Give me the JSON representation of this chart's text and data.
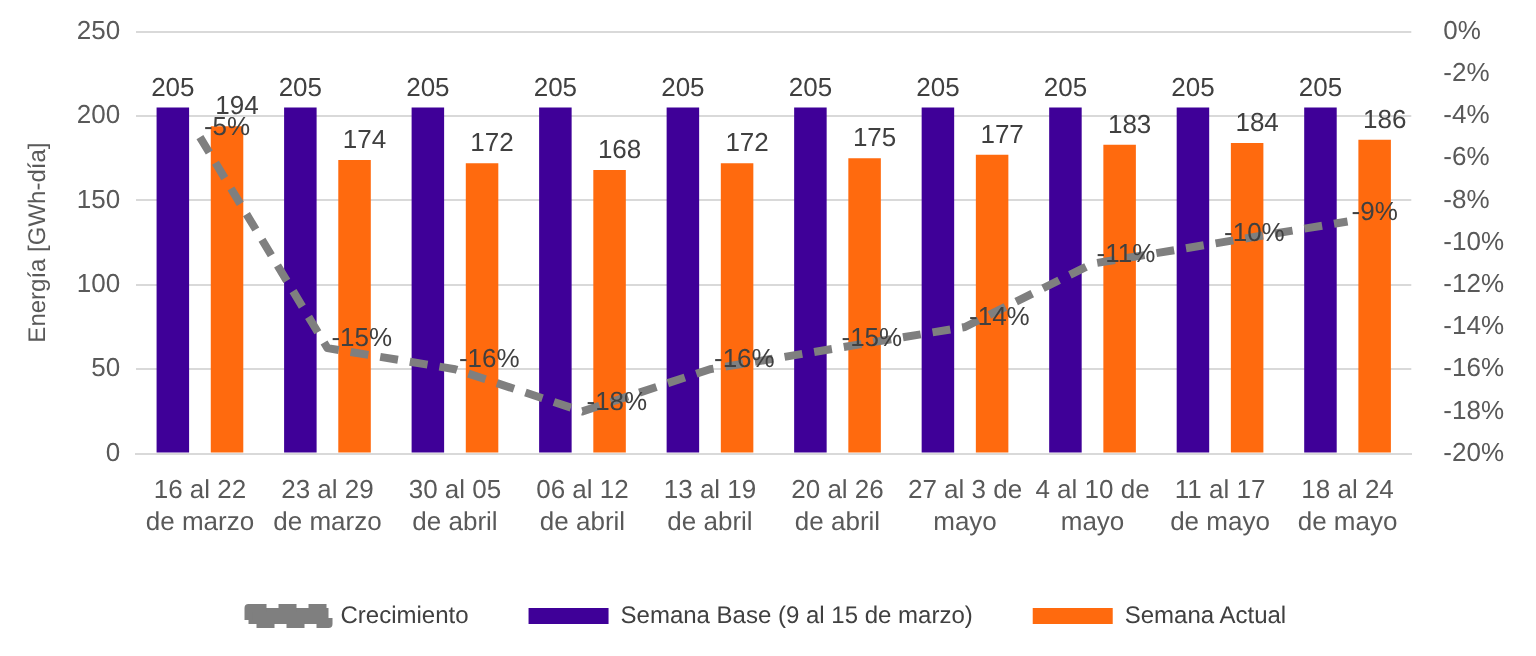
{
  "chart_data": {
    "type": "bar",
    "categories": [
      "16 al 22 de marzo",
      "23 al 29 de marzo",
      "30 al 05 de abril",
      "06 al 12 de abril",
      "13 al 19 de abril",
      "20 al 26 de abril",
      "27 al 3 de mayo",
      "4 al 10 de mayo",
      "11 al 17 de mayo",
      "18 al 24 de mayo"
    ],
    "ylabel": "Energía [GWh-día]",
    "ylim": [
      0,
      250
    ],
    "yticks": [
      0,
      50,
      100,
      150,
      200,
      250
    ],
    "y2lim": [
      -20,
      0
    ],
    "y2ticks": [
      {
        "value": -20,
        "label": "-20%"
      },
      {
        "value": -18,
        "label": "-18%"
      },
      {
        "value": -16,
        "label": "-16%"
      },
      {
        "value": -14,
        "label": "-14%"
      },
      {
        "value": -12,
        "label": "-12%"
      },
      {
        "value": -10,
        "label": "-10%"
      },
      {
        "value": -8,
        "label": "-8%"
      },
      {
        "value": -6,
        "label": "-6%"
      },
      {
        "value": -4,
        "label": "-4%"
      },
      {
        "value": -2,
        "label": "-2%"
      },
      {
        "value": 0,
        "label": "0%"
      }
    ],
    "series": [
      {
        "name": "Semana Base (9 al 15 de marzo)",
        "color": "#3f0098",
        "values": [
          205,
          205,
          205,
          205,
          205,
          205,
          205,
          205,
          205,
          205
        ]
      },
      {
        "name": "Semana Actual",
        "color": "#ff6a0e",
        "values": [
          194,
          174,
          172,
          168,
          172,
          175,
          177,
          183,
          184,
          186
        ]
      },
      {
        "name": "Crecimiento",
        "type": "line",
        "axis": "y2",
        "color": "#7f7f7f",
        "line_style": "dashed",
        "marker": "none",
        "values": [
          -5,
          -15,
          -16,
          -18,
          -16,
          -15,
          -14,
          -11,
          -10,
          -9
        ],
        "value_labels": [
          "-5%",
          "-15%",
          "-16%",
          "-18%",
          "-16%",
          "-15%",
          "-14%",
          "-11%",
          "-10%",
          "-9%"
        ]
      }
    ],
    "data_labels": true,
    "grid": "y",
    "legend": "bottom"
  }
}
